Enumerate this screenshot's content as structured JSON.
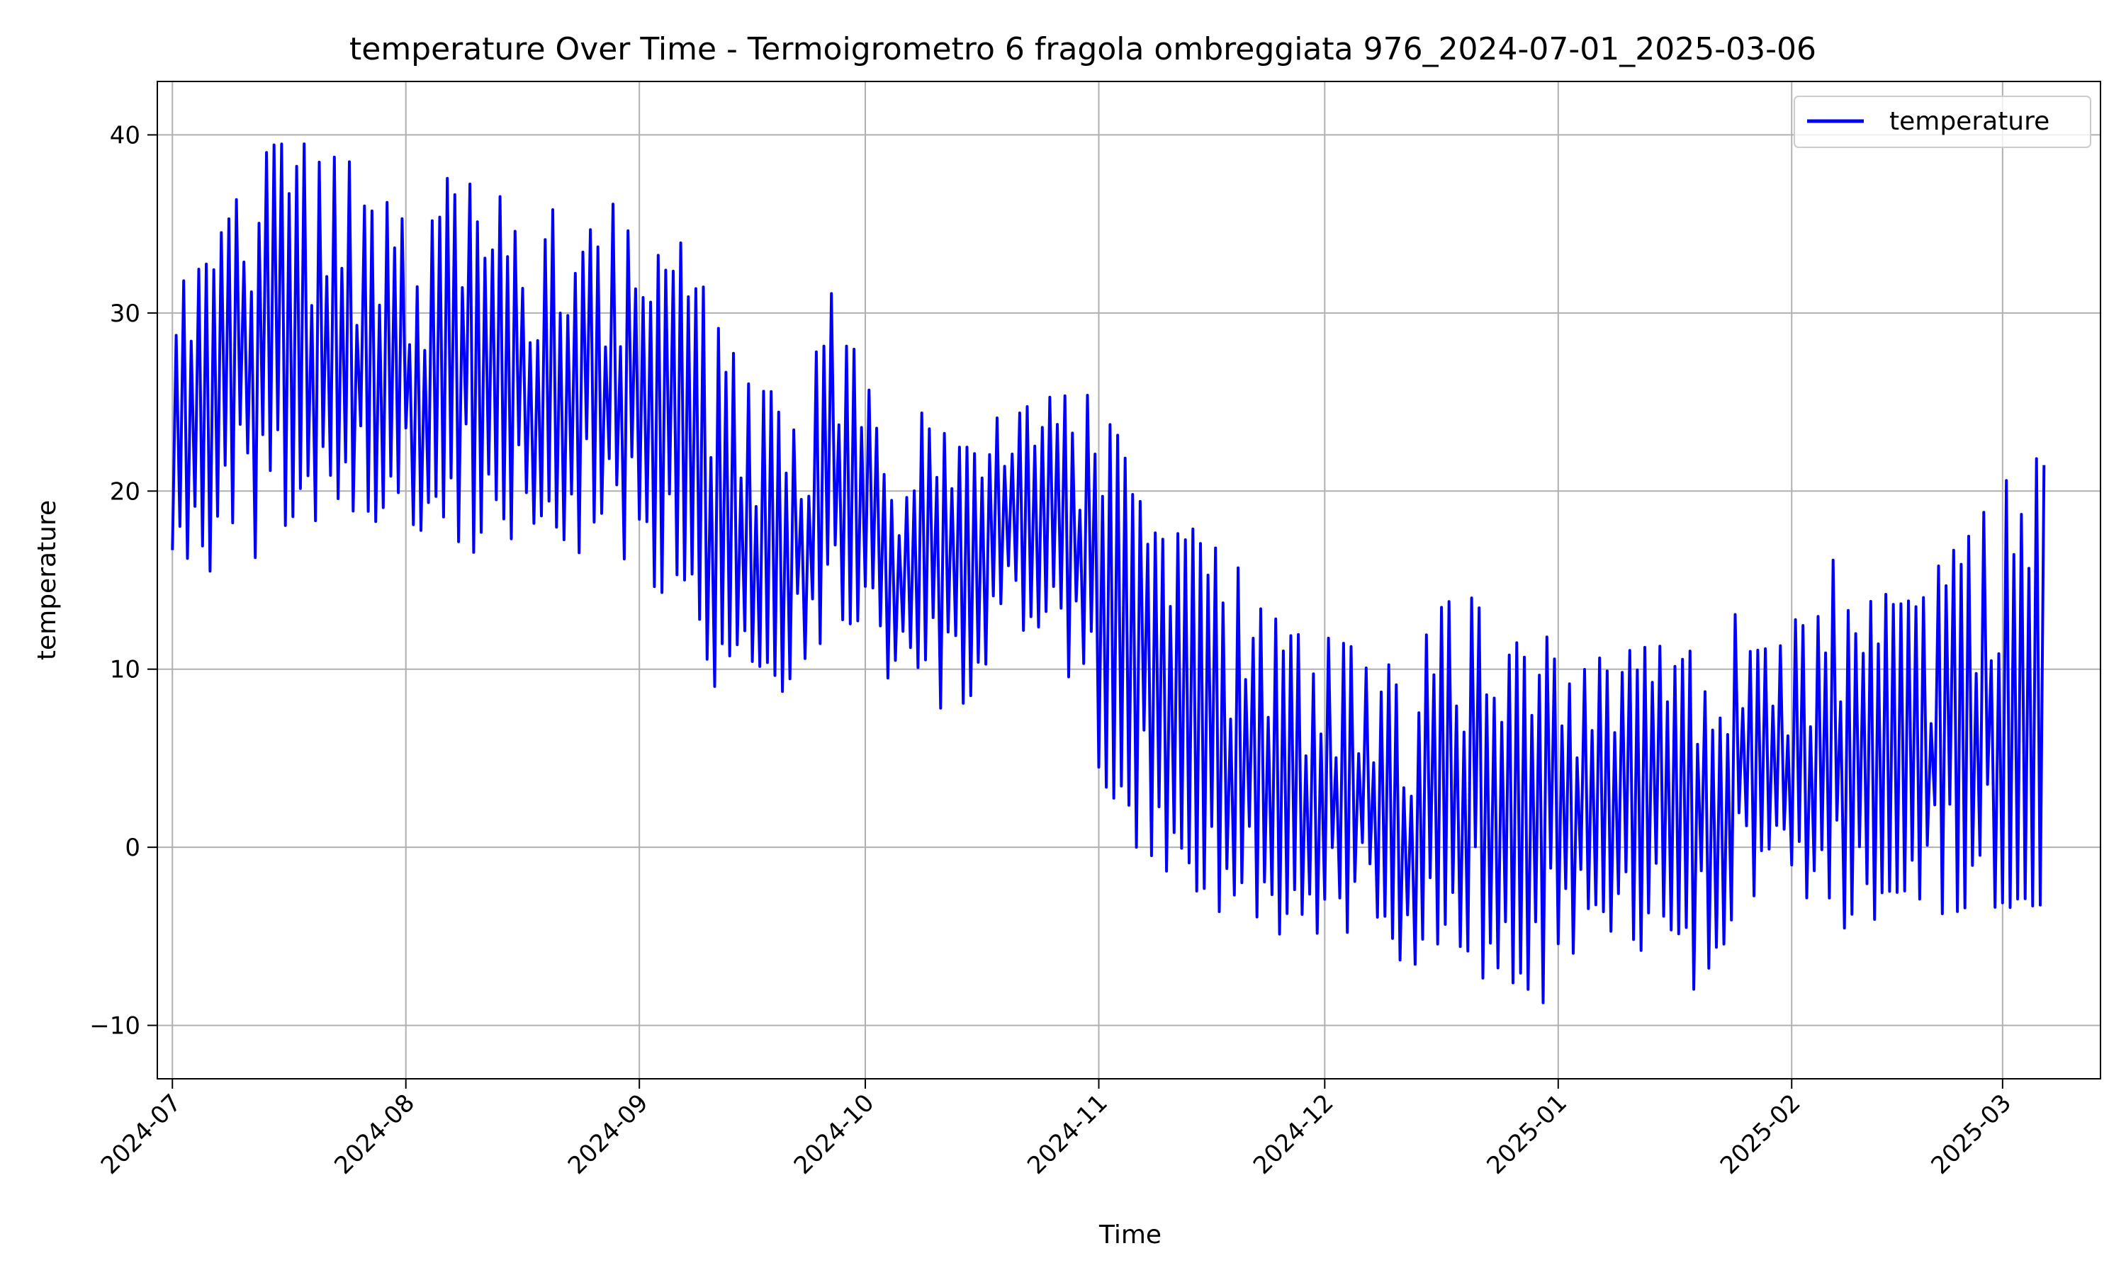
{
  "chart_data": {
    "type": "line",
    "title": "temperature Over Time - Termoigrometro 6 fragola ombreggiata 976_2024-07-01_2025-03-06",
    "xlabel": "Time",
    "ylabel": "temperature",
    "x_range": [
      "2024-06-29",
      "2025-03-14"
    ],
    "ylim": [
      -13,
      43
    ],
    "x_ticks": [
      "2024-07-01",
      "2024-08-01",
      "2024-09-01",
      "2024-10-01",
      "2024-11-01",
      "2024-12-01",
      "2025-01-01",
      "2025-02-01",
      "2025-03-01"
    ],
    "x_tick_labels": [
      "2024-07",
      "2024-08",
      "2024-09",
      "2024-10",
      "2024-11",
      "2024-12",
      "2025-01",
      "2025-02",
      "2025-03"
    ],
    "y_ticks": [
      -10,
      0,
      10,
      20,
      30,
      40
    ],
    "y_tick_labels": [
      "−10",
      "0",
      "10",
      "20",
      "30",
      "40"
    ],
    "grid": true,
    "legend": "top-right",
    "series": [
      {
        "name": "temperature",
        "color": "#0000ff",
        "sampling": "daily min / max",
        "x": [
          "2024-07-01",
          "2024-07-05",
          "2024-07-09",
          "2024-07-13",
          "2024-07-17",
          "2024-07-21",
          "2024-07-25",
          "2024-07-29",
          "2024-08-02",
          "2024-08-06",
          "2024-08-10",
          "2024-08-14",
          "2024-08-18",
          "2024-08-22",
          "2024-08-26",
          "2024-08-30",
          "2024-09-03",
          "2024-09-07",
          "2024-09-11",
          "2024-09-15",
          "2024-09-19",
          "2024-09-23",
          "2024-09-27",
          "2024-10-01",
          "2024-10-05",
          "2024-10-09",
          "2024-10-13",
          "2024-10-17",
          "2024-10-21",
          "2024-10-25",
          "2024-10-29",
          "2024-11-02",
          "2024-11-06",
          "2024-11-10",
          "2024-11-14",
          "2024-11-18",
          "2024-11-22",
          "2024-11-26",
          "2024-11-30",
          "2024-12-04",
          "2024-12-08",
          "2024-12-12",
          "2024-12-16",
          "2024-12-20",
          "2024-12-24",
          "2024-12-28",
          "2025-01-01",
          "2025-01-05",
          "2025-01-09",
          "2025-01-13",
          "2025-01-17",
          "2025-01-21",
          "2025-01-25",
          "2025-01-29",
          "2025-02-02",
          "2025-02-06",
          "2025-02-10",
          "2025-02-14",
          "2025-02-18",
          "2025-02-22",
          "2025-02-26",
          "2025-03-02",
          "2025-03-06"
        ],
        "min": [
          16.5,
          15.0,
          17.0,
          16.0,
          17.5,
          18.0,
          17.5,
          18.5,
          18.0,
          17.0,
          16.5,
          17.0,
          17.5,
          17.0,
          16.0,
          15.5,
          14.0,
          15.0,
          9.0,
          11.0,
          8.0,
          10.5,
          12.0,
          12.5,
          8.5,
          8.0,
          7.5,
          9.5,
          11.0,
          12.5,
          8.0,
          3.0,
          0.0,
          -1.5,
          -2.5,
          -4.0,
          -4.5,
          -5.5,
          -6.0,
          -5.0,
          -4.0,
          -7.5,
          -5.5,
          -6.5,
          -8.5,
          -8.5,
          -9.0,
          -7.0,
          -5.0,
          -6.5,
          -8.5,
          -7.5,
          -3.5,
          -2.0,
          -3.5,
          -4.5,
          -5.0,
          -3.5,
          -3.0,
          -4.0,
          -3.5,
          -3.5,
          -3.5
        ],
        "max": [
          32.5,
          35.0,
          36.5,
          39.5,
          40.0,
          39.0,
          38.5,
          37.5,
          35.0,
          37.5,
          38.0,
          36.5,
          33.0,
          37.5,
          38.0,
          35.0,
          33.5,
          34.0,
          30.0,
          26.5,
          25.5,
          25.5,
          32.0,
          26.5,
          23.0,
          26.0,
          22.5,
          22.5,
          27.0,
          25.5,
          26.0,
          24.5,
          21.0,
          18.5,
          18.0,
          16.5,
          14.5,
          12.5,
          12.0,
          11.5,
          10.5,
          10.0,
          13.5,
          14.5,
          12.5,
          11.5,
          14.5,
          10.5,
          11.0,
          11.5,
          12.0,
          11.5,
          13.5,
          11.0,
          14.0,
          16.5,
          14.0,
          14.5,
          13.5,
          18.5,
          18.5,
          21.0,
          24.5
        ]
      }
    ]
  }
}
